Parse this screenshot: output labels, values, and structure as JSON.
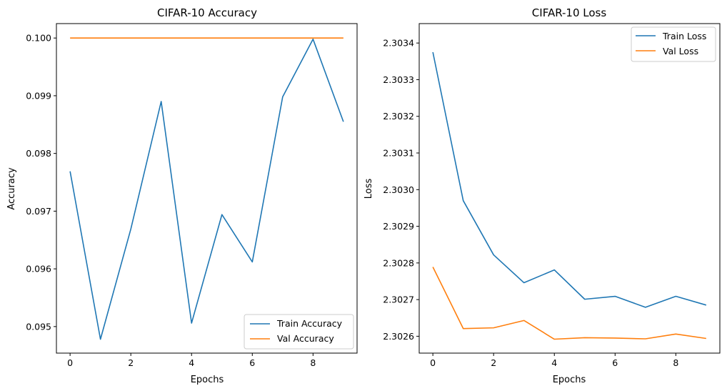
{
  "chart_data": [
    {
      "type": "line",
      "title": "CIFAR-10 Accuracy",
      "xlabel": "Epochs",
      "ylabel": "Accuracy",
      "x": [
        0,
        1,
        2,
        3,
        4,
        5,
        6,
        7,
        8,
        9
      ],
      "xlim": [
        -0.45,
        9.45
      ],
      "ylim": [
        0.09454,
        0.10025
      ],
      "xticks": [
        0,
        2,
        4,
        6,
        8
      ],
      "xtick_labels": [
        "0",
        "2",
        "4",
        "6",
        "8"
      ],
      "yticks": [
        0.095,
        0.096,
        0.097,
        0.098,
        0.099,
        0.1
      ],
      "ytick_labels": [
        "0.095",
        "0.096",
        "0.097",
        "0.098",
        "0.099",
        "0.100"
      ],
      "legend_position": "lower-right",
      "series": [
        {
          "name": "Train Accuracy",
          "color": "#1f77b4",
          "values": [
            0.09769,
            0.09478,
            0.09669,
            0.0989,
            0.09506,
            0.09694,
            0.09612,
            0.09898,
            0.09998,
            0.09855
          ]
        },
        {
          "name": "Val Accuracy",
          "color": "#ff7f0e",
          "values": [
            0.1,
            0.1,
            0.1,
            0.1,
            0.1,
            0.1,
            0.1,
            0.1,
            0.1,
            0.1
          ]
        }
      ]
    },
    {
      "type": "line",
      "title": "CIFAR-10 Loss",
      "xlabel": "Epochs",
      "ylabel": "Loss",
      "x": [
        0,
        1,
        2,
        3,
        4,
        5,
        6,
        7,
        8,
        9
      ],
      "xlim": [
        -0.45,
        9.45
      ],
      "ylim": [
        2.302554,
        2.303453
      ],
      "xticks": [
        0,
        2,
        4,
        6,
        8
      ],
      "xtick_labels": [
        "0",
        "2",
        "4",
        "6",
        "8"
      ],
      "yticks": [
        2.3026,
        2.3027,
        2.3028,
        2.3029,
        2.303,
        2.3031,
        2.3032,
        2.3033,
        2.3034
      ],
      "ytick_labels": [
        "2.3026",
        "2.3027",
        "2.3028",
        "2.3029",
        "2.3030",
        "2.3031",
        "2.3032",
        "2.3033",
        "2.3034"
      ],
      "legend_position": "upper-right",
      "series": [
        {
          "name": "Train Loss",
          "color": "#1f77b4",
          "values": [
            2.303375,
            2.30297,
            2.302822,
            2.302746,
            2.302781,
            2.302701,
            2.302709,
            2.302679,
            2.302709,
            2.302685
          ]
        },
        {
          "name": "Val Loss",
          "color": "#ff7f0e",
          "values": [
            2.302789,
            2.302621,
            2.302623,
            2.302643,
            2.302592,
            2.302596,
            2.302595,
            2.302593,
            2.302606,
            2.302594
          ]
        }
      ]
    }
  ]
}
